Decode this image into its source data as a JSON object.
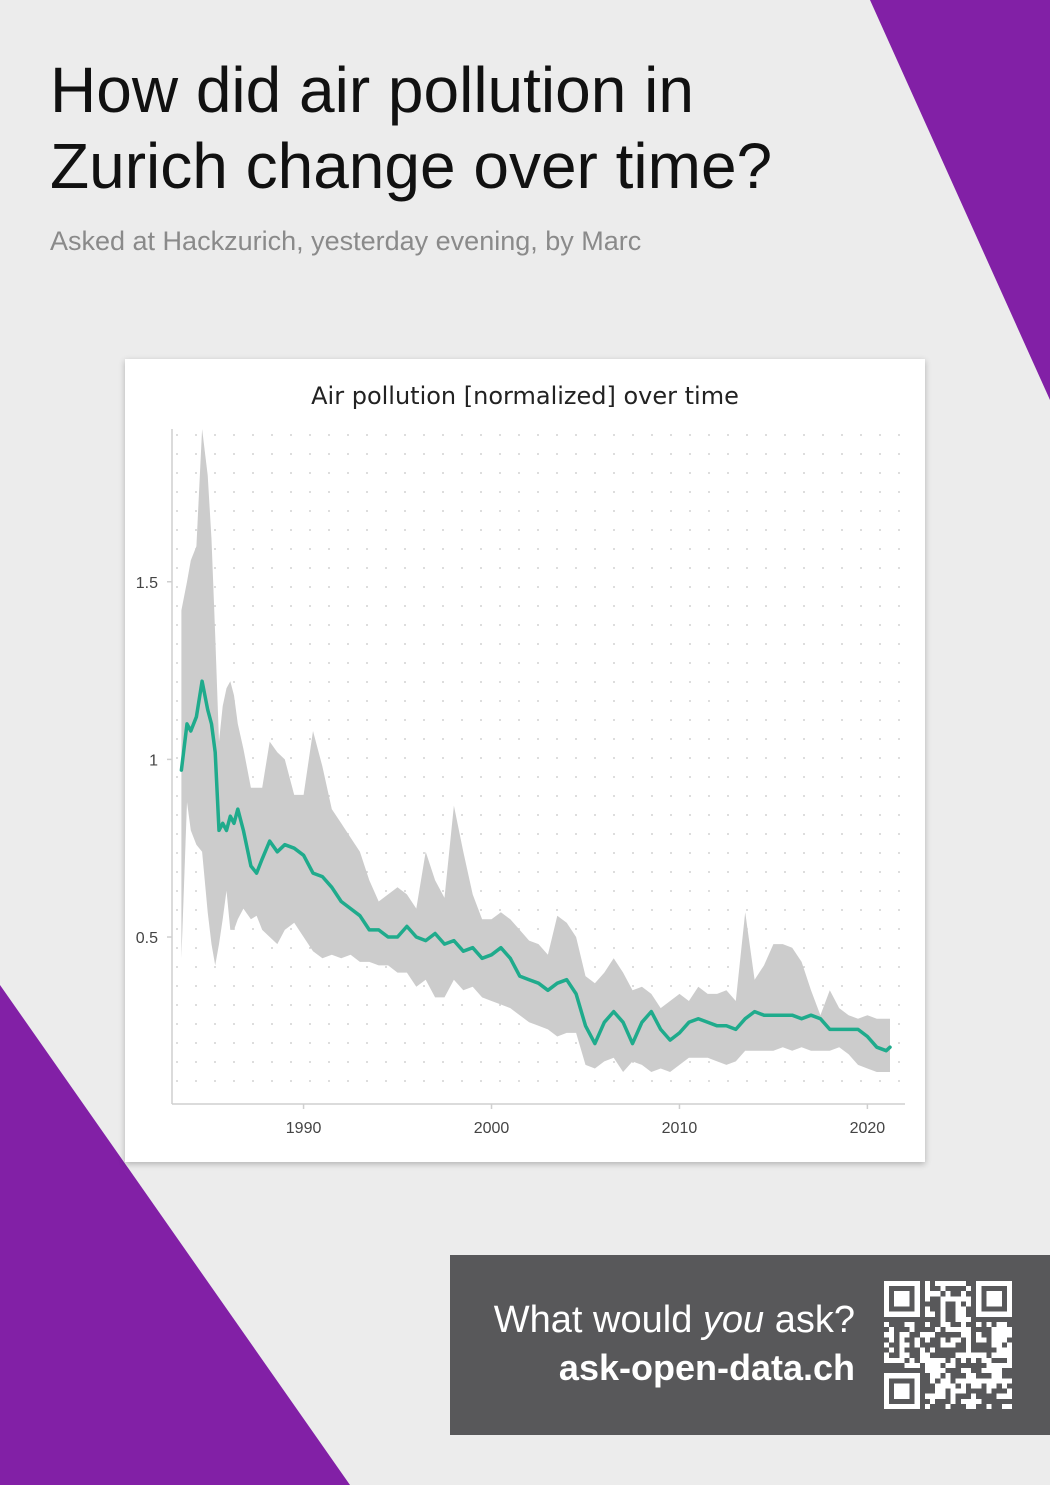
{
  "page": {
    "title": "How did air pollution in Zurich change over time?",
    "subtitle": "Asked at Hackzurich, yesterday evening, by Marc"
  },
  "colors": {
    "background": "#ececec",
    "accent_purple": "#8220a6",
    "line": "#1fab8c",
    "band": "#cccccc",
    "cta_background": "#58585a"
  },
  "cta": {
    "question_prefix": "What would ",
    "question_emphasis": "you",
    "question_suffix": " ask?",
    "url": "ask-open-data.ch",
    "qr_icon": "qr-code-icon"
  },
  "chart_data": {
    "type": "line",
    "title": "Air pollution [normalized] over time",
    "xlabel": "",
    "ylabel": "",
    "xlim": [
      1983,
      2022
    ],
    "ylim": [
      0.03,
      1.93
    ],
    "x_ticks": [
      1990,
      2000,
      2010,
      2020
    ],
    "y_ticks": [
      0.5,
      1,
      1.5
    ],
    "y_tick_labels": [
      "0.5",
      "1",
      "1.5"
    ],
    "grid": "dotted",
    "legend": "none",
    "series": [
      {
        "x": [
          1983.5,
          1983.8,
          1984.0,
          1984.3,
          1984.6,
          1984.9,
          1985.1,
          1985.3,
          1985.5,
          1985.7,
          1985.9,
          1986.1,
          1986.3,
          1986.5,
          1986.8,
          1987.2,
          1987.5,
          1987.8,
          1988.2,
          1988.6,
          1989.0,
          1989.5,
          1990.0,
          1990.5,
          1991.0,
          1991.5,
          1992.0,
          1992.5,
          1993.0,
          1993.5,
          1994.0,
          1994.5,
          1995.0,
          1995.5,
          1996.0,
          1996.5,
          1997.0,
          1997.5,
          1998.0,
          1998.5,
          1999.0,
          1999.5,
          2000.0,
          2000.5,
          2001.0,
          2001.5,
          2002.0,
          2002.5,
          2003.0,
          2003.5,
          2004.0,
          2004.5,
          2005.0,
          2005.5,
          2006.0,
          2006.5,
          2007.0,
          2007.5,
          2008.0,
          2008.5,
          2009.0,
          2009.5,
          2010.0,
          2010.5,
          2011.0,
          2011.5,
          2012.0,
          2012.5,
          2013.0,
          2013.5,
          2014.0,
          2014.5,
          2015.0,
          2015.5,
          2016.0,
          2016.5,
          2017.0,
          2017.5,
          2018.0,
          2018.5,
          2019.0,
          2019.5,
          2020.0,
          2020.5,
          2021.0,
          2021.2
        ],
        "values": [
          0.97,
          1.1,
          1.08,
          1.12,
          1.22,
          1.14,
          1.1,
          1.02,
          0.8,
          0.82,
          0.8,
          0.84,
          0.82,
          0.86,
          0.8,
          0.7,
          0.68,
          0.72,
          0.77,
          0.74,
          0.76,
          0.75,
          0.73,
          0.68,
          0.67,
          0.64,
          0.6,
          0.58,
          0.56,
          0.52,
          0.52,
          0.5,
          0.5,
          0.53,
          0.5,
          0.49,
          0.51,
          0.48,
          0.49,
          0.46,
          0.47,
          0.44,
          0.45,
          0.47,
          0.44,
          0.39,
          0.38,
          0.37,
          0.35,
          0.37,
          0.38,
          0.34,
          0.25,
          0.2,
          0.26,
          0.29,
          0.26,
          0.2,
          0.26,
          0.29,
          0.24,
          0.21,
          0.23,
          0.26,
          0.27,
          0.26,
          0.25,
          0.25,
          0.24,
          0.27,
          0.29,
          0.28,
          0.28,
          0.28,
          0.28,
          0.27,
          0.28,
          0.27,
          0.24,
          0.24,
          0.24,
          0.24,
          0.22,
          0.19,
          0.18,
          0.19
        ],
        "upper": [
          1.42,
          1.5,
          1.56,
          1.6,
          1.93,
          1.8,
          1.62,
          1.35,
          1.05,
          1.15,
          1.2,
          1.22,
          1.18,
          1.1,
          1.03,
          0.92,
          0.92,
          0.92,
          1.05,
          1.02,
          1.0,
          0.9,
          0.9,
          1.08,
          0.98,
          0.86,
          0.82,
          0.78,
          0.74,
          0.66,
          0.6,
          0.62,
          0.64,
          0.62,
          0.58,
          0.74,
          0.66,
          0.61,
          0.87,
          0.74,
          0.62,
          0.55,
          0.55,
          0.57,
          0.55,
          0.52,
          0.49,
          0.48,
          0.45,
          0.56,
          0.54,
          0.5,
          0.39,
          0.37,
          0.4,
          0.44,
          0.4,
          0.35,
          0.36,
          0.34,
          0.3,
          0.32,
          0.34,
          0.32,
          0.36,
          0.34,
          0.34,
          0.35,
          0.32,
          0.57,
          0.38,
          0.42,
          0.48,
          0.48,
          0.47,
          0.43,
          0.35,
          0.28,
          0.35,
          0.3,
          0.28,
          0.27,
          0.28,
          0.27,
          0.27,
          0.27
        ],
        "lower": [
          0.44,
          0.88,
          0.8,
          0.76,
          0.74,
          0.57,
          0.48,
          0.42,
          0.48,
          0.55,
          0.63,
          0.52,
          0.52,
          0.55,
          0.58,
          0.55,
          0.56,
          0.52,
          0.5,
          0.48,
          0.52,
          0.54,
          0.5,
          0.46,
          0.44,
          0.45,
          0.44,
          0.45,
          0.43,
          0.43,
          0.42,
          0.42,
          0.4,
          0.4,
          0.36,
          0.38,
          0.33,
          0.33,
          0.38,
          0.35,
          0.36,
          0.33,
          0.32,
          0.31,
          0.3,
          0.28,
          0.26,
          0.25,
          0.24,
          0.22,
          0.23,
          0.23,
          0.14,
          0.13,
          0.15,
          0.16,
          0.12,
          0.15,
          0.14,
          0.12,
          0.13,
          0.12,
          0.14,
          0.16,
          0.16,
          0.16,
          0.15,
          0.14,
          0.15,
          0.18,
          0.18,
          0.18,
          0.18,
          0.19,
          0.18,
          0.19,
          0.18,
          0.18,
          0.18,
          0.19,
          0.17,
          0.14,
          0.13,
          0.12,
          0.12,
          0.12
        ]
      }
    ]
  }
}
